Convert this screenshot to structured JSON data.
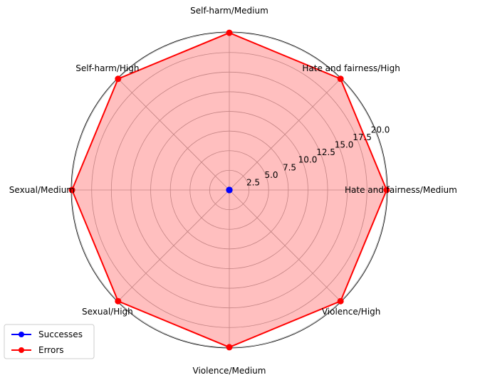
{
  "chart_data": {
    "type": "radar",
    "categories": [
      "Hate and fairness/Medium",
      "Hate and fairness/High",
      "Self-harm/Medium",
      "Self-harm/High",
      "Sexual/Medium",
      "Sexual/High",
      "Violence/Medium",
      "Violence/High"
    ],
    "radial_ticks": [
      "2.5",
      "5.0",
      "7.5",
      "10.0",
      "12.5",
      "15.0",
      "17.5",
      "20.0"
    ],
    "rlim": [
      0,
      20.1
    ],
    "grid": true,
    "legend_position": "lower-left",
    "series": [
      {
        "name": "Successes",
        "color": "#0000ff",
        "values": [
          0,
          0,
          0,
          0,
          0,
          0,
          0,
          0
        ],
        "fill": false
      },
      {
        "name": "Errors",
        "color": "#ff0000",
        "fill_color": "#ff0000",
        "fill_opacity": 0.25,
        "values": [
          20,
          20,
          20,
          20,
          20,
          20,
          20,
          20
        ],
        "fill": true
      }
    ]
  }
}
